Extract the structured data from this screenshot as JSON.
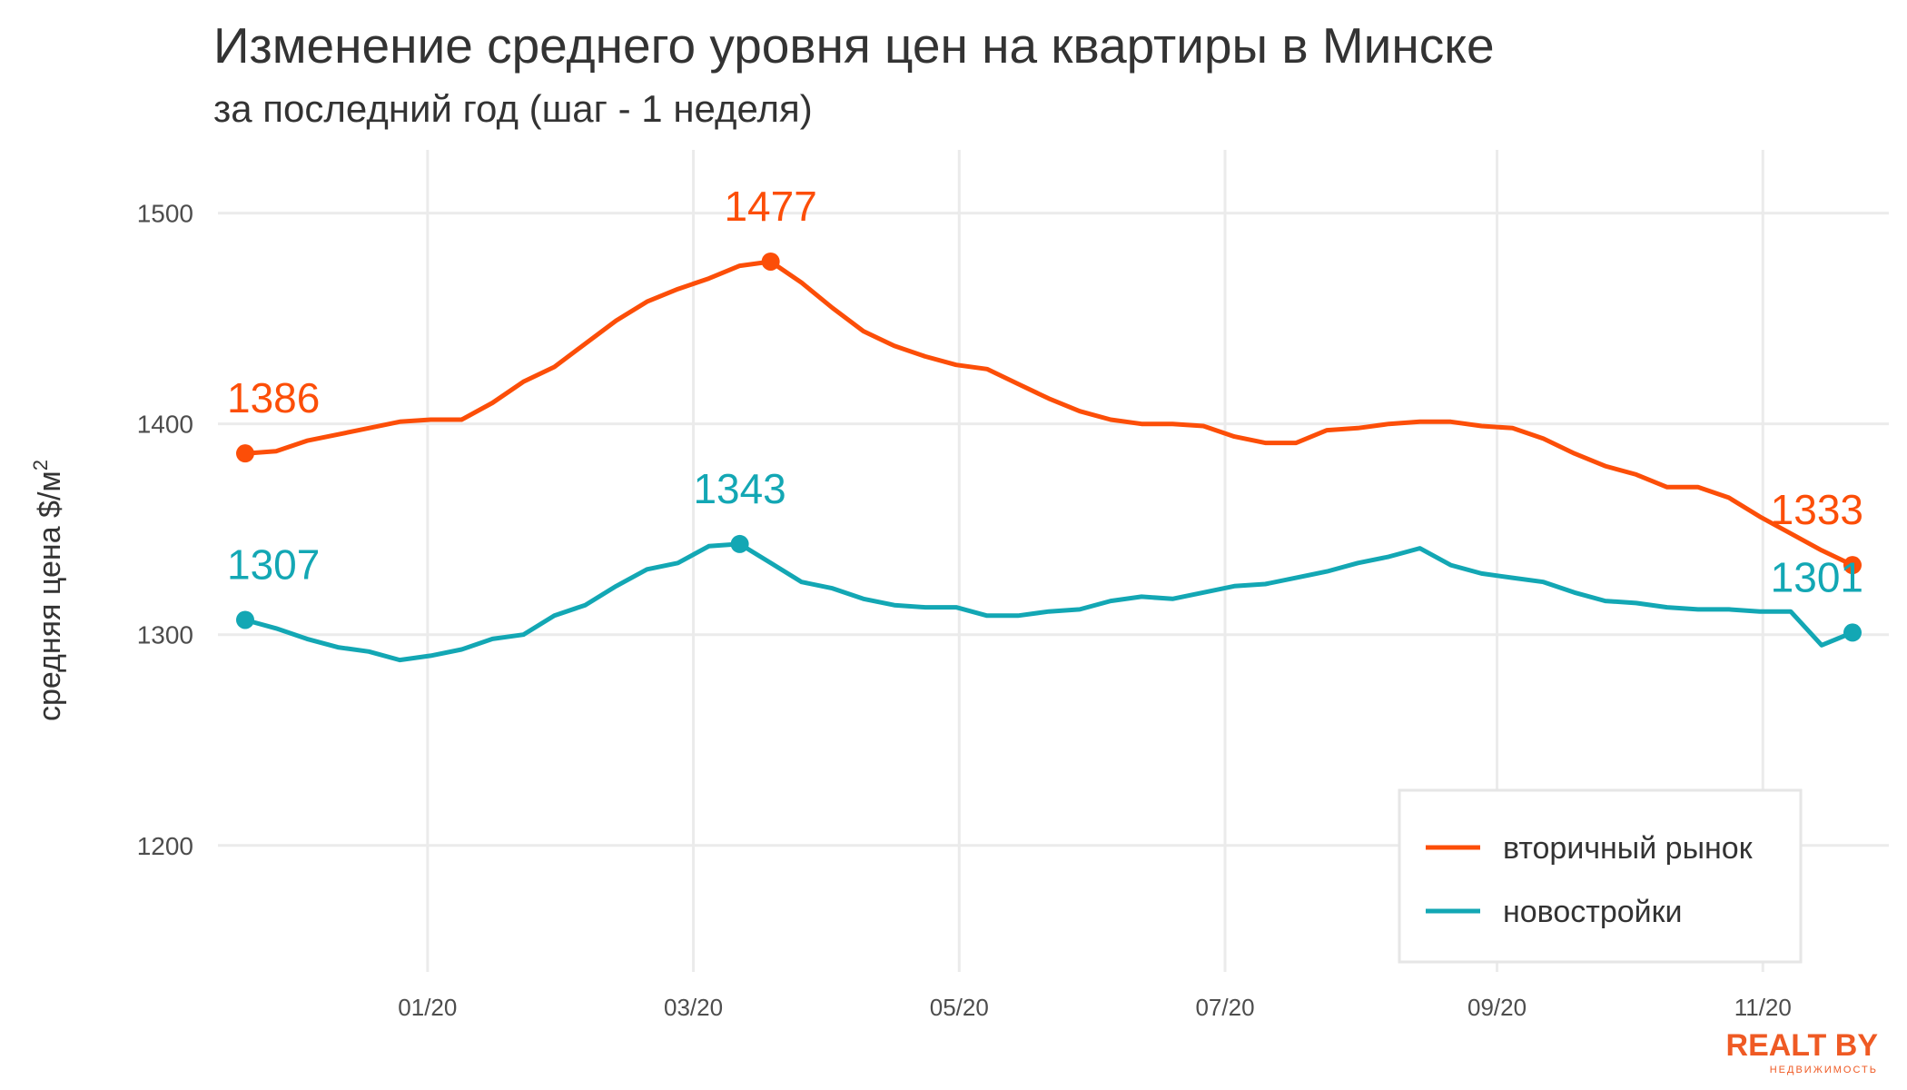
{
  "chart_data": {
    "type": "line",
    "title": "Изменение среднего уровня цен на квартиры в Минске",
    "subtitle": "за последний год (шаг - 1 неделя)",
    "ylabel": "средняя цена $/м",
    "ylabel_sup": "2",
    "xlabel": "",
    "ylim": [
      1140,
      1530
    ],
    "y_ticks": [
      "1200",
      "1300",
      "1400",
      "1500"
    ],
    "x_ticks": [
      "01/20",
      "03/20",
      "05/20",
      "07/20",
      "09/20",
      "11/20"
    ],
    "x_tick_weeks": [
      5.9,
      14.5,
      23.1,
      31.7,
      40.5,
      49.1
    ],
    "grid": true,
    "legend_position": "bottom-right",
    "series": [
      {
        "name": "вторичный рынок",
        "color": "#fc4e08",
        "values": [
          1386,
          1387,
          1392,
          1395,
          1398,
          1401,
          1402,
          1402,
          1410,
          1420,
          1427,
          1438,
          1449,
          1458,
          1464,
          1469,
          1475,
          1477,
          1467,
          1455,
          1444,
          1437,
          1432,
          1428,
          1426,
          1419,
          1412,
          1406,
          1402,
          1400,
          1400,
          1399,
          1394,
          1391,
          1391,
          1397,
          1398,
          1400,
          1401,
          1401,
          1399,
          1398,
          1393,
          1386,
          1380,
          1376,
          1370,
          1370,
          1365,
          1356,
          1348,
          1340,
          1333
        ],
        "annotations": [
          {
            "index": 0,
            "label": "1386"
          },
          {
            "index": 17,
            "label": "1477"
          },
          {
            "index": 52,
            "label": "1333"
          }
        ]
      },
      {
        "name": "новостройки",
        "color": "#13a7b4",
        "values": [
          1307,
          1303,
          1298,
          1294,
          1292,
          1288,
          1290,
          1293,
          1298,
          1300,
          1309,
          1314,
          1323,
          1331,
          1334,
          1342,
          1343,
          1334,
          1325,
          1322,
          1317,
          1314,
          1313,
          1313,
          1309,
          1309,
          1311,
          1312,
          1316,
          1318,
          1317,
          1320,
          1323,
          1324,
          1327,
          1330,
          1334,
          1337,
          1341,
          1333,
          1329,
          1327,
          1325,
          1320,
          1316,
          1315,
          1313,
          1312,
          1312,
          1311,
          1311,
          1295,
          1301
        ],
        "annotations": [
          {
            "index": 0,
            "label": "1307"
          },
          {
            "index": 16,
            "label": "1343"
          },
          {
            "index": 52,
            "label": "1301"
          }
        ]
      }
    ]
  },
  "logo": {
    "text": "REALT BY",
    "subtext": "НЕДВИЖИМОСТЬ",
    "color": "#ef5a24"
  }
}
